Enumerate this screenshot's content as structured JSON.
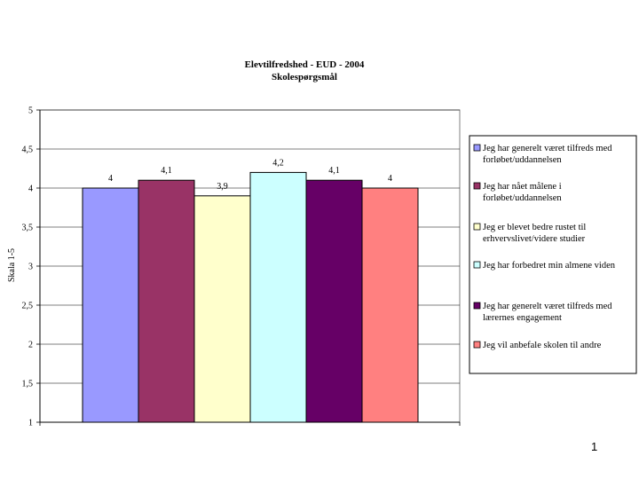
{
  "slide": {
    "page_number": "1"
  },
  "chart_data": {
    "type": "bar",
    "title": "Elevtilfredshed - EUD - 2004",
    "subtitle": "Skolespørgsmål",
    "ylabel": "Skala 1-5",
    "xlabel": "",
    "ylim": [
      1,
      5
    ],
    "yticks": [
      {
        "value": 1,
        "label": "1"
      },
      {
        "value": 1.5,
        "label": "1,5"
      },
      {
        "value": 2,
        "label": "2"
      },
      {
        "value": 2.5,
        "label": "2,5"
      },
      {
        "value": 3,
        "label": "3"
      },
      {
        "value": 3.5,
        "label": "3,5"
      },
      {
        "value": 4,
        "label": "4"
      },
      {
        "value": 4.5,
        "label": "4,5"
      },
      {
        "value": 5,
        "label": "5"
      }
    ],
    "grid": true,
    "legend_position": "right",
    "series": [
      {
        "name_lines": [
          "Jeg har generelt været tilfreds med",
          "forløbet/uddannelsen"
        ],
        "value": 4,
        "value_label": "4",
        "color": "#9999ff"
      },
      {
        "name_lines": [
          "Jeg har nået målene i",
          "forløbet/uddannelsen"
        ],
        "value": 4.1,
        "value_label": "4,1",
        "color": "#993366"
      },
      {
        "name_lines": [
          "Jeg er blevet bedre rustet til",
          "erhvervslivet/videre studier"
        ],
        "value": 3.9,
        "value_label": "3,9",
        "color": "#ffffcc"
      },
      {
        "name_lines": [
          "Jeg har forbedret min almene viden"
        ],
        "value": 4.2,
        "value_label": "4,2",
        "color": "#ccffff"
      },
      {
        "name_lines": [
          "Jeg har generelt været tilfreds med",
          "lærernes engagement"
        ],
        "value": 4.1,
        "value_label": "4,1",
        "color": "#660066"
      },
      {
        "name_lines": [
          "Jeg vil anbefale skolen til andre"
        ],
        "value": 4,
        "value_label": "4",
        "color": "#ff8080"
      }
    ]
  }
}
